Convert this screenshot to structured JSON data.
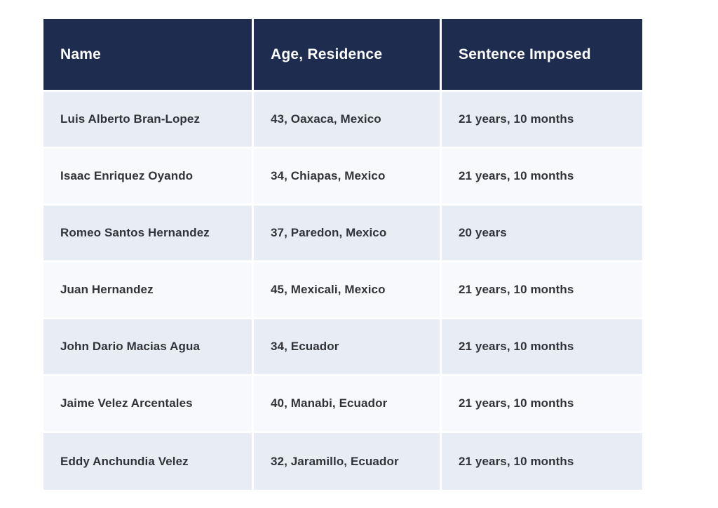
{
  "table": {
    "columns": [
      "Name",
      "Age, Residence",
      "Sentence Imposed"
    ],
    "rows": [
      [
        "Luis Alberto Bran-Lopez",
        "43, Oaxaca, Mexico",
        "21 years, 10 months"
      ],
      [
        "Isaac Enriquez Oyando",
        "34, Chiapas, Mexico",
        "21 years, 10 months"
      ],
      [
        "Romeo Santos Hernandez",
        "37, Paredon, Mexico",
        "20 years"
      ],
      [
        "Juan Hernandez",
        "45, Mexicali, Mexico",
        "21 years, 10 months"
      ],
      [
        "John Dario Macias Agua",
        "34, Ecuador",
        "21 years, 10 months"
      ],
      [
        "Jaime Velez Arcentales",
        "40, Manabi, Ecuador",
        "21 years, 10 months"
      ],
      [
        "Eddy Anchundia Velez",
        "32, Jaramillo, Ecuador",
        "21 years, 10 months"
      ]
    ],
    "colors": {
      "header_bg": "#1e2d4f",
      "header_text": "#ffffff",
      "row_odd_bg": "#e8edf5",
      "row_even_bg": "#f7f9fc",
      "cell_text": "#323338",
      "gutter": "#ffffff"
    }
  }
}
